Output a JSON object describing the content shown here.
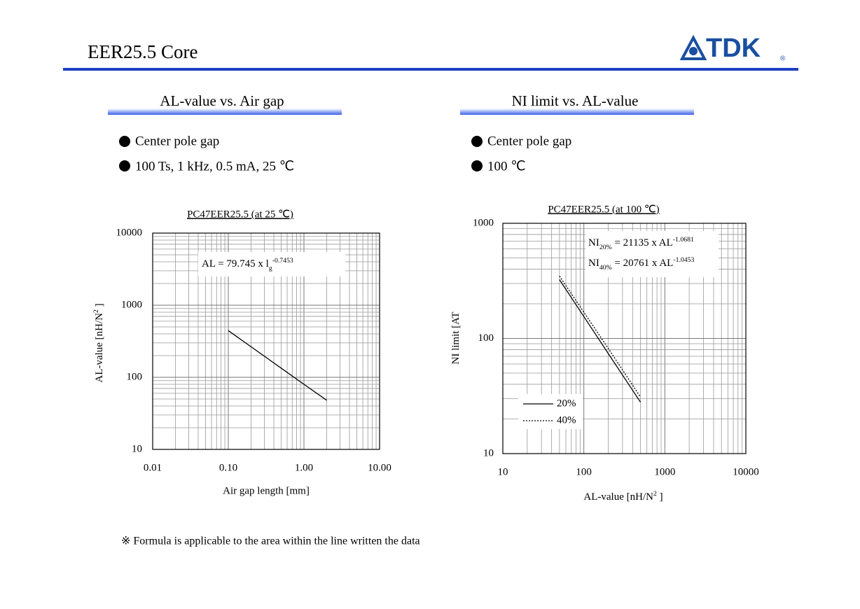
{
  "header": {
    "title": "EER25.5  Core",
    "logo": "TDK",
    "logo_mark": "®"
  },
  "panels": [
    {
      "heading": "AL-value vs. Air gap",
      "bullets": [
        "Center pole gap",
        "100 Ts,  1 kHz,  0.5 mA,  25 ℃"
      ]
    },
    {
      "heading": "NI limit vs. AL-value",
      "bullets": [
        "Center pole gap",
        "100 ℃"
      ]
    }
  ],
  "chart_data": [
    {
      "type": "line",
      "title": "PC47EER25.5 (at 25 ℃)",
      "x_label": "Air gap length [mm]",
      "y_label": [
        "AL-value [nH/N",
        "2",
        " ]"
      ],
      "log_x": true,
      "log_y": true,
      "grid": true,
      "xlim": [
        0.01,
        10
      ],
      "xticks": [
        0.01,
        {
          "value": 0.1,
          "label": "0.10"
        },
        {
          "value": 1,
          "label": "1.00"
        },
        {
          "value": 10,
          "label": "10.00"
        }
      ],
      "ylim": [
        10,
        10000
      ],
      "yticks": [
        10,
        100,
        1000,
        10000
      ],
      "x": [
        0.1,
        0.2,
        0.5,
        1,
        2
      ],
      "series": [
        {
          "color": "#000000",
          "dash": "solid",
          "values": [
            444,
            265,
            134,
            80,
            48
          ]
        }
      ],
      "annotations": [
        [
          "AL = 79.745 x  l",
          "g",
          "-0.7453"
        ]
      ]
    },
    {
      "type": "line",
      "title": "PC47EER25.5 (at 100 ℃)",
      "x_label": [
        "AL-value [nH/N",
        "2",
        " ]"
      ],
      "y_label": [
        "NI limit [AT"
      ],
      "log_x": true,
      "log_y": true,
      "grid": true,
      "legend": "lower left",
      "xlim": [
        10,
        10000
      ],
      "xticks": [
        10,
        100,
        1000,
        10000
      ],
      "ylim": [
        10,
        1000
      ],
      "yticks": [
        10,
        100,
        1000
      ],
      "x": [
        50,
        100,
        200,
        500
      ],
      "series": [
        {
          "name": "20%",
          "color": "#000000",
          "dash": "solid",
          "values": [
            324,
            155,
            74,
            28
          ]
        },
        {
          "name": "40%",
          "color": "#000000",
          "dash": "dotted",
          "values": [
            348,
            169,
            82,
            31
          ]
        }
      ],
      "annotations": [
        [
          "NI",
          "20%",
          " = 21135 x AL",
          "-1.0681"
        ],
        [
          "NI",
          "40%",
          " = 20761 x AL",
          "-1.0453"
        ]
      ]
    }
  ],
  "footnote": "※ Formula is applicable to the area within the line written the data"
}
